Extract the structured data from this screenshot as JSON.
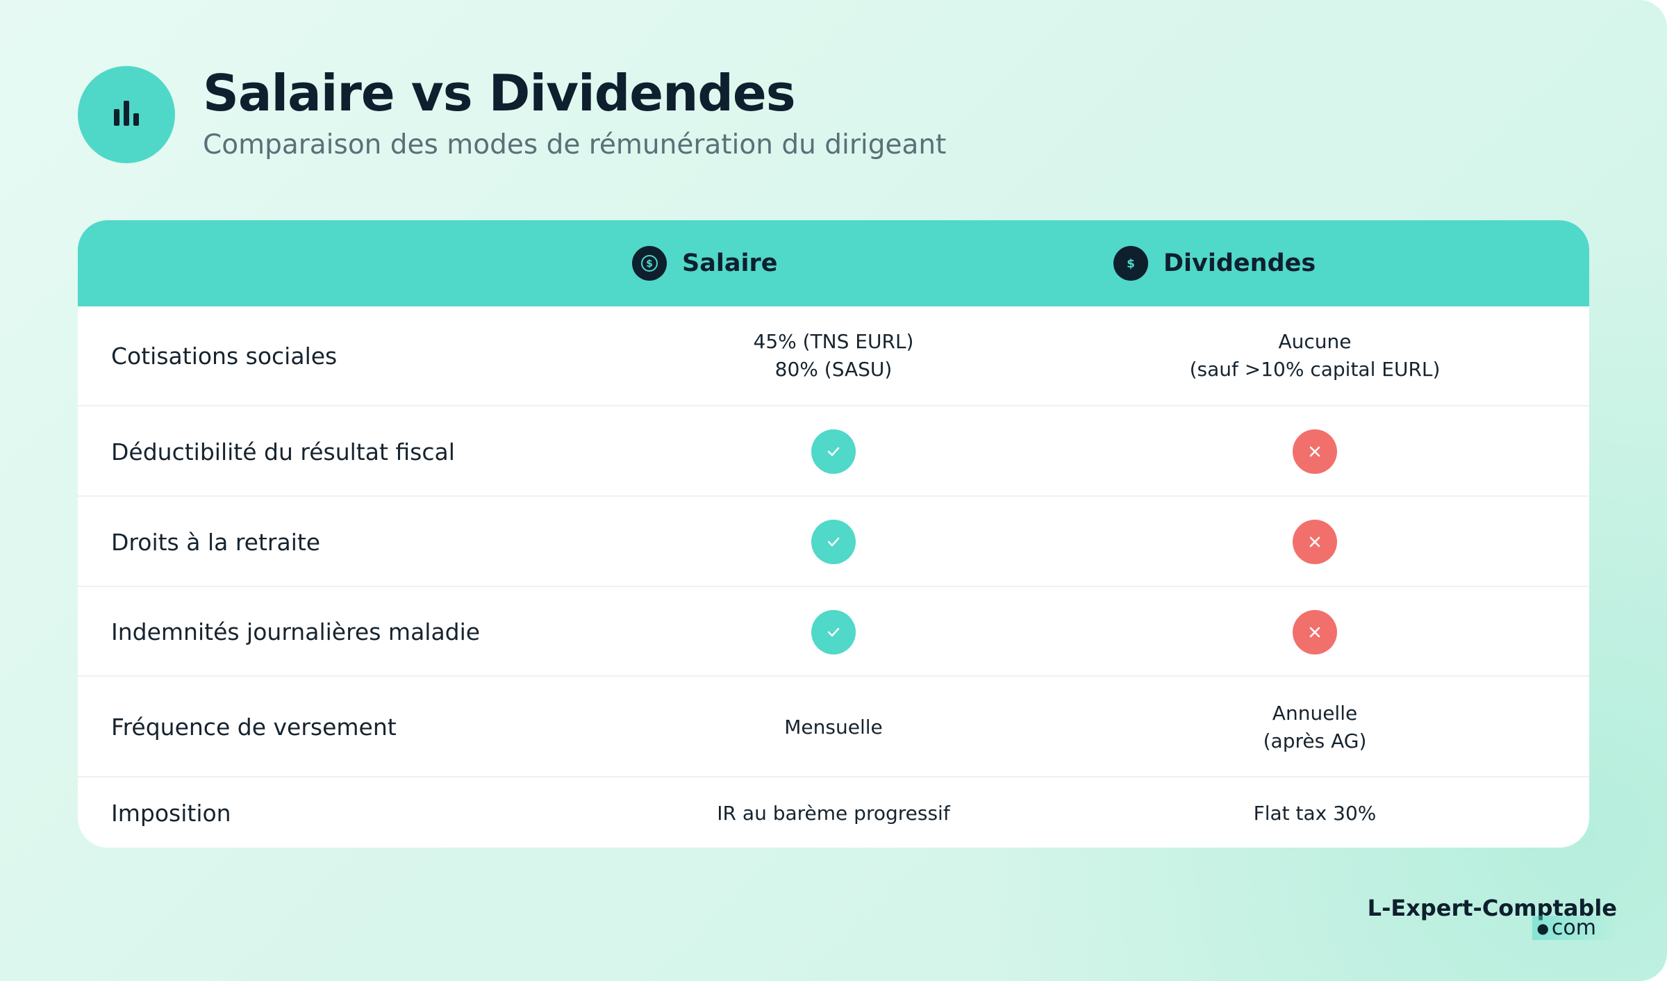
{
  "header": {
    "title": "Salaire vs Dividendes",
    "subtitle": "Comparaison des modes de rémunération du dirigeant"
  },
  "table": {
    "columns": [
      "Salaire",
      "Dividendes"
    ],
    "rows": [
      {
        "label": "Cotisations sociales",
        "cells": [
          [
            "45% (TNS EURL)",
            "80% (SASU)"
          ],
          [
            "Aucune",
            "(sauf >10% capital EURL)"
          ]
        ]
      },
      {
        "label": "Déductibilité du résultat fiscal",
        "cells": [
          true,
          false
        ]
      },
      {
        "label": "Droits à la retraite",
        "cells": [
          true,
          false
        ]
      },
      {
        "label": "Indemnités journalières maladie",
        "cells": [
          true,
          false
        ]
      },
      {
        "label": "Fréquence de versement",
        "cells": [
          [
            "Mensuelle"
          ],
          [
            "Annuelle",
            "(après AG)"
          ]
        ]
      },
      {
        "label": "Imposition",
        "cells": [
          [
            "IR au barème progressif"
          ],
          [
            "Flat tax 30%"
          ]
        ]
      }
    ]
  },
  "logo": {
    "name": "L-Expert-Comptable",
    "tld": "com"
  }
}
